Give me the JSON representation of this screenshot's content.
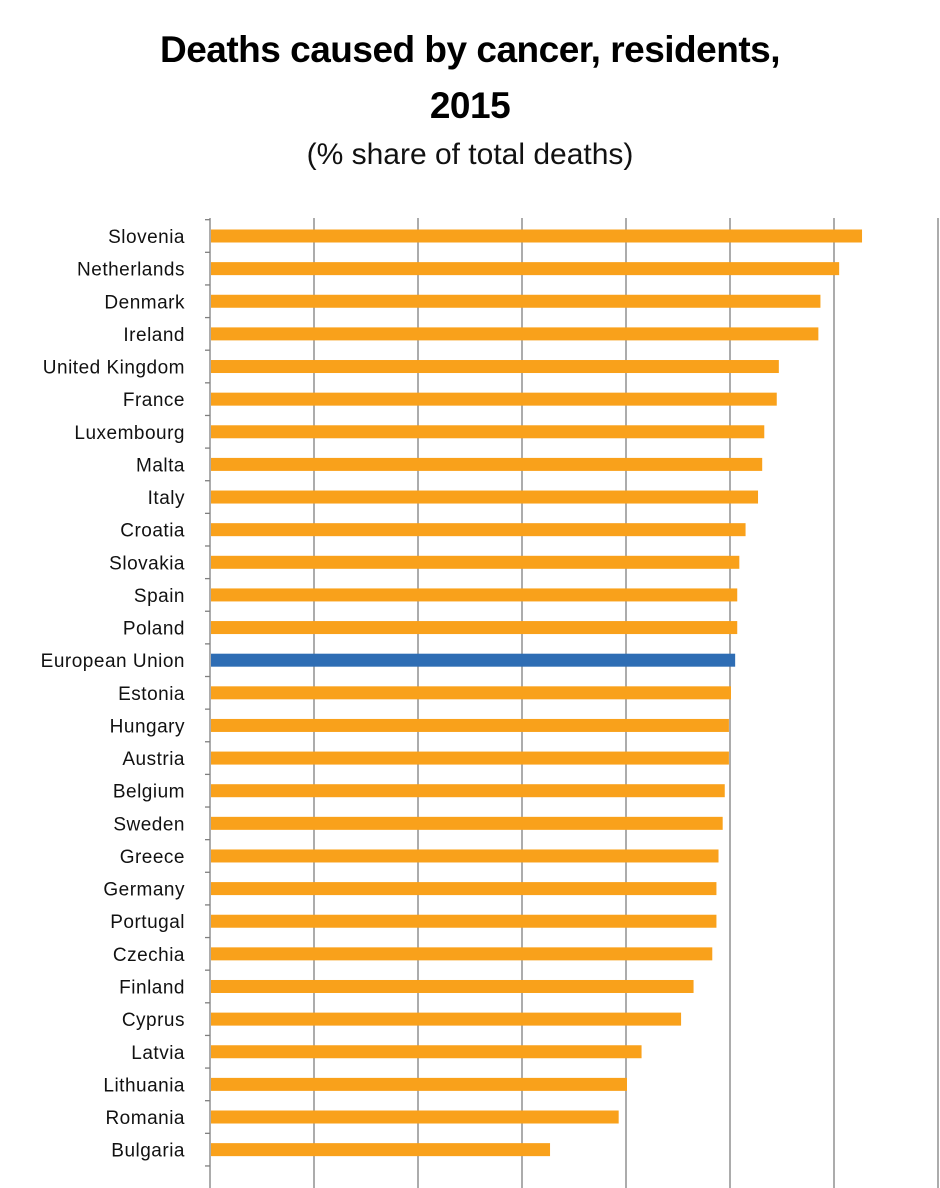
{
  "chart_data": {
    "type": "bar",
    "orientation": "horizontal",
    "title": "Deaths caused by cancer, residents, 2015",
    "title_lines": [
      "Deaths caused by cancer, residents,",
      "2015"
    ],
    "subtitle": "(% share of total deaths)",
    "xlabel": "",
    "ylabel": "",
    "xlim": [
      0,
      35
    ],
    "grid": true,
    "categories": [
      "Slovenia",
      "Netherlands",
      "Denmark",
      "Ireland",
      "United Kingdom",
      "France",
      "Luxembourg",
      "Malta",
      "Italy",
      "Croatia",
      "Slovakia",
      "Spain",
      "Poland",
      "European Union",
      "Estonia",
      "Hungary",
      "Austria",
      "Belgium",
      "Sweden",
      "Greece",
      "Germany",
      "Portugal",
      "Czechia",
      "Finland",
      "Cyprus",
      "Latvia",
      "Lithuania",
      "Romania",
      "Bulgaria"
    ],
    "values": [
      31.3,
      30.2,
      29.3,
      29.2,
      27.3,
      27.2,
      26.6,
      26.5,
      26.3,
      25.7,
      25.4,
      25.3,
      25.3,
      25.2,
      25.0,
      24.9,
      24.9,
      24.7,
      24.6,
      24.4,
      24.3,
      24.3,
      24.1,
      23.2,
      22.6,
      20.7,
      20.0,
      19.6,
      16.3
    ],
    "highlight": "European Union",
    "colors": {
      "bar": "#F9A11B",
      "highlight": "#2E6DB4",
      "grid": "#7F7F7F"
    }
  }
}
